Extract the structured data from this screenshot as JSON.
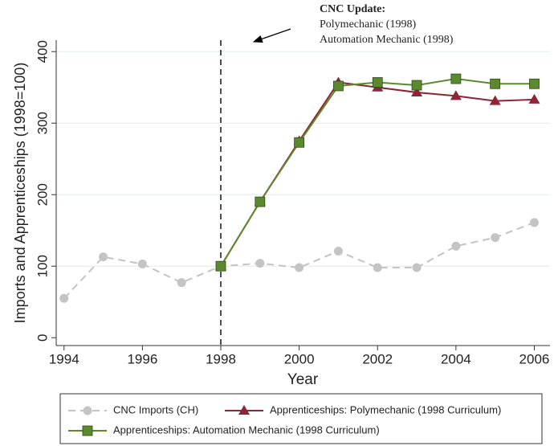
{
  "chart_data": {
    "type": "line",
    "y_label": "Imports and Apprenticeships (1998=100)",
    "x_label": "Year",
    "annotation": {
      "title": "CNC Update:",
      "lines": [
        "Polymechanic (1998)",
        "Automation Mechanic (1998)"
      ]
    },
    "vline": 1998,
    "x": [
      1994,
      1995,
      1996,
      1997,
      1998,
      1999,
      2000,
      2001,
      2002,
      2003,
      2004,
      2005,
      2006
    ],
    "series": [
      {
        "name": "CNC Imports (CH)",
        "color": "#c4c4c4",
        "marker": "circle",
        "dash": true,
        "values": [
          55,
          113,
          103,
          77,
          100,
          104,
          98,
          121,
          98,
          98,
          128,
          140,
          161
        ]
      },
      {
        "name": "Apprenticeships: Polymechanic (1998 Curriculum)",
        "color": "#8e2435",
        "marker": "triangle",
        "dash": false,
        "values": [
          null,
          null,
          null,
          null,
          100,
          190,
          275,
          357,
          350,
          343,
          338,
          331,
          333
        ]
      },
      {
        "name": "Apprenticeships: Automation Mechanic (1998 Curriculum)",
        "color": "#5b8a2e",
        "marker": "square",
        "dash": false,
        "values": [
          null,
          null,
          null,
          null,
          100,
          190,
          273,
          352,
          357,
          353,
          362,
          355,
          355
        ]
      }
    ],
    "xlim": [
      1993.8,
      2006.4
    ],
    "xticks": [
      1994,
      1996,
      1998,
      2000,
      2002,
      2004,
      2006
    ],
    "ylim": [
      -11,
      416
    ],
    "yticks": [
      0,
      100,
      200,
      300,
      400
    ],
    "grid": true,
    "legend": "bottom"
  }
}
